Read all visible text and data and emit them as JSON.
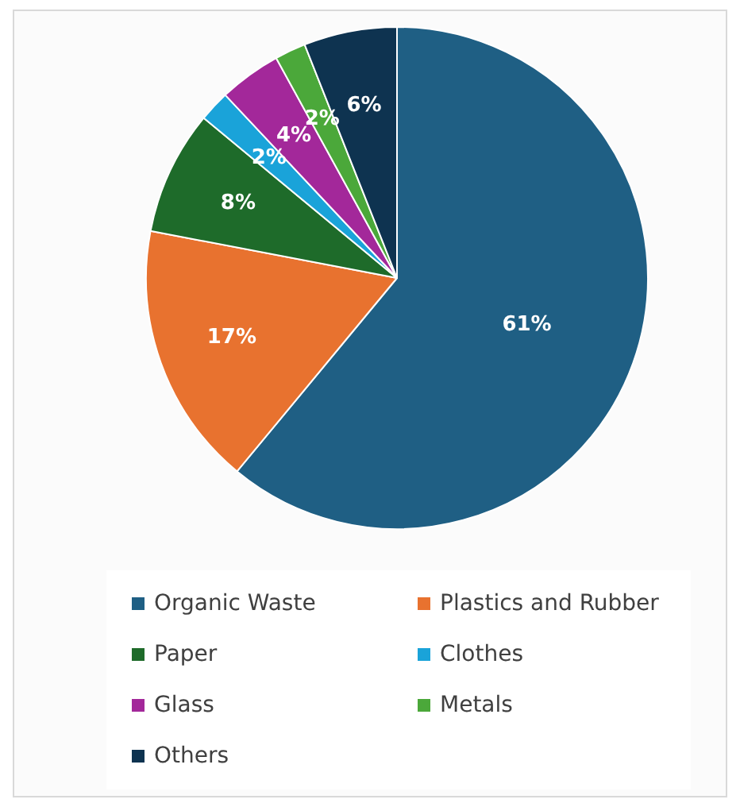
{
  "chart_data": {
    "type": "pie",
    "categories": [
      "Organic Waste",
      "Plastics and Rubber",
      "Paper",
      "Clothes",
      "Glass",
      "Metals",
      "Others"
    ],
    "values": [
      61,
      17,
      8,
      2,
      4,
      2,
      6
    ],
    "colors": [
      "#1f5f84",
      "#e8722f",
      "#1e6b2a",
      "#1aa3d9",
      "#a3289a",
      "#4ba83a",
      "#0e3350"
    ],
    "value_labels": [
      "61%",
      "17%",
      "8%",
      "2%",
      "4%",
      "2%",
      "6%"
    ],
    "legend": "bottom"
  }
}
